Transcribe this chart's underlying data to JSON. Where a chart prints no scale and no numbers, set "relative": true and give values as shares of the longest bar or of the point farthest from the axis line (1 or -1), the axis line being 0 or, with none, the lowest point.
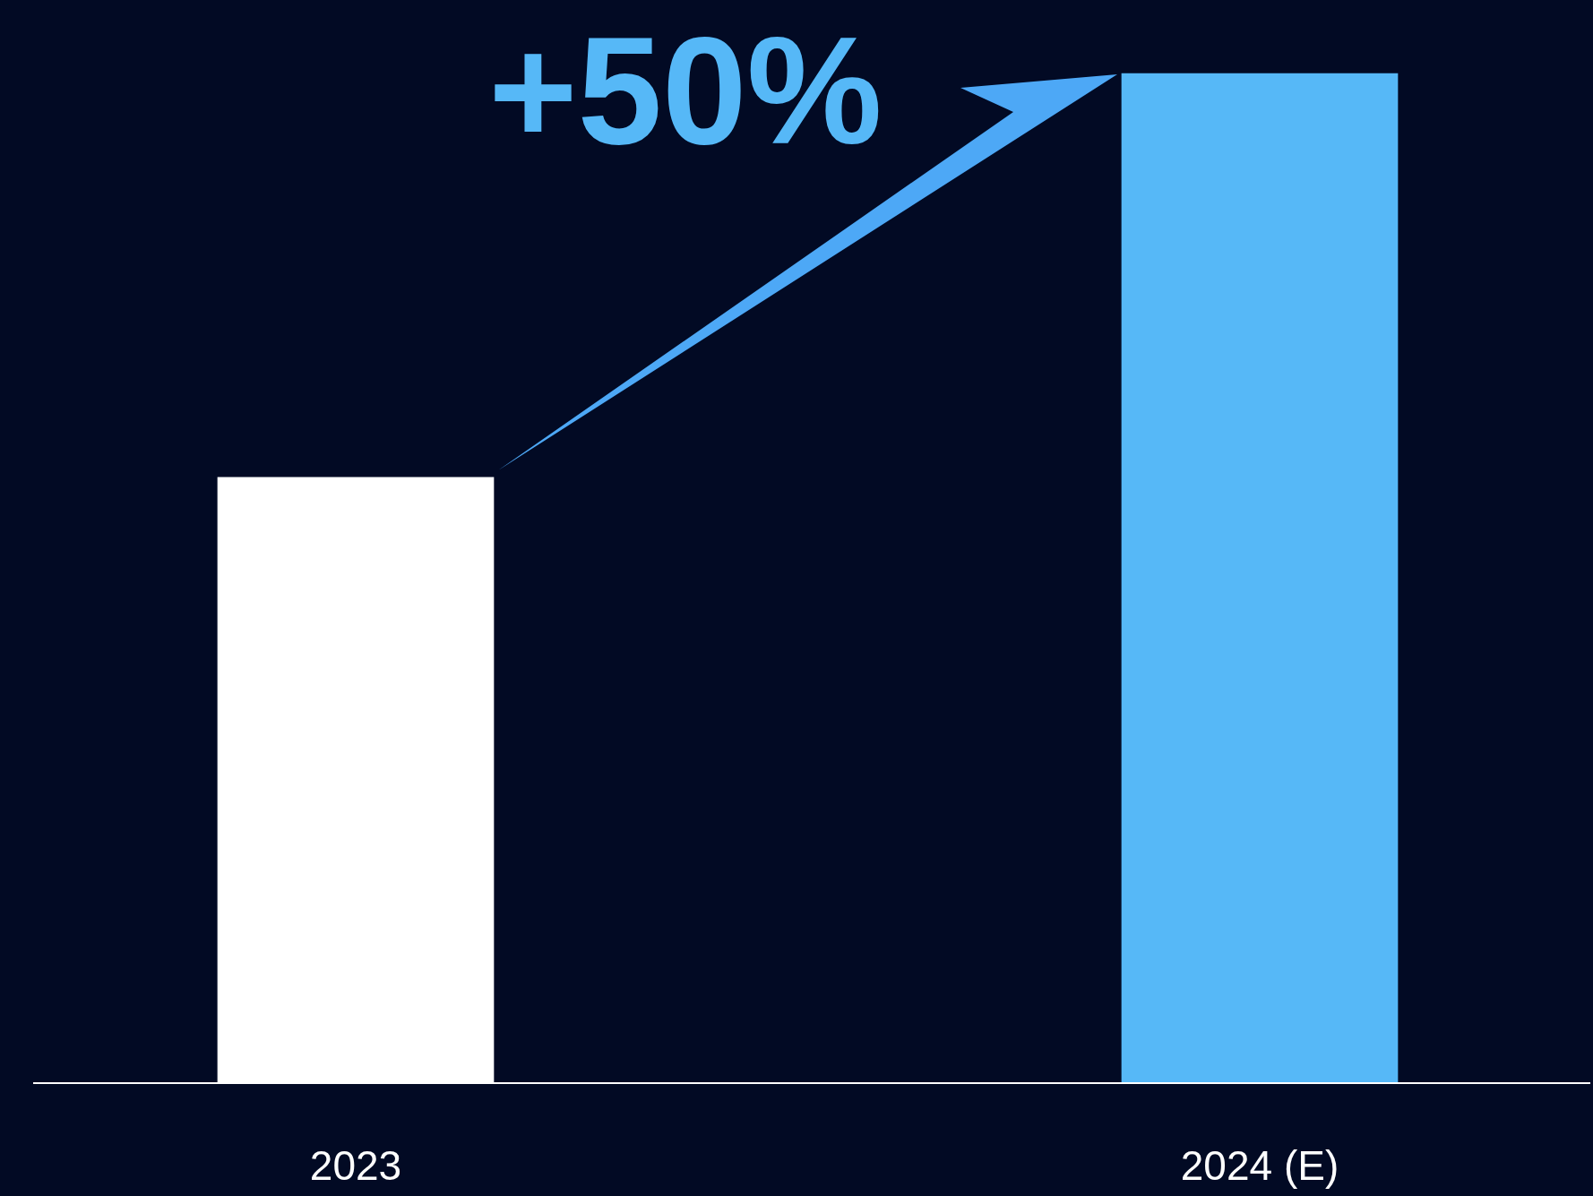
{
  "chart_data": {
    "type": "bar",
    "categories": [
      "2023",
      "2024 (E)"
    ],
    "values": [
      0.6,
      1
    ],
    "colors": [
      "#ffffff",
      "#56b8f7"
    ],
    "relative": true,
    "annotations": [
      "+50%"
    ]
  }
}
